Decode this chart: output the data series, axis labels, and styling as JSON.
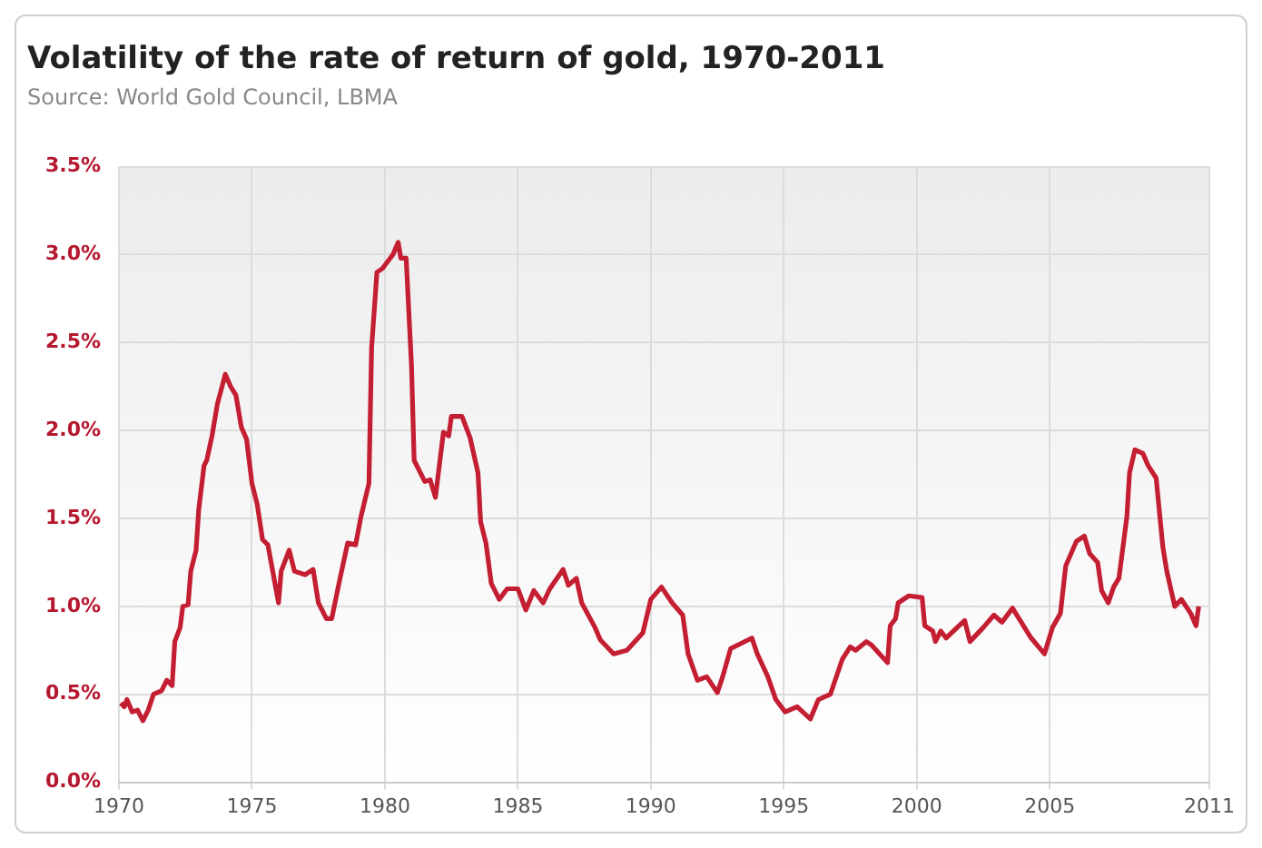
{
  "chart_data": {
    "type": "line",
    "title": "Volatility of the rate of return of gold, 1970-2011",
    "annotations": [
      "Source: World Gold Council, LBMA"
    ],
    "x": [
      1970.07,
      1970.2,
      1970.3,
      1970.5,
      1970.7,
      1970.9,
      1971.1,
      1971.3,
      1971.6,
      1971.8,
      1972.0,
      1972.1,
      1972.3,
      1972.4,
      1972.6,
      1972.7,
      1972.9,
      1973.0,
      1973.2,
      1973.3,
      1973.5,
      1973.7,
      1974.0,
      1974.2,
      1974.4,
      1974.6,
      1974.8,
      1975.0,
      1975.2,
      1975.4,
      1975.6,
      1976.0,
      1976.1,
      1976.4,
      1976.6,
      1977.0,
      1977.3,
      1977.5,
      1977.8,
      1978.0,
      1978.3,
      1978.6,
      1978.9,
      1979.1,
      1979.4,
      1979.5,
      1979.7,
      1979.9,
      1980.3,
      1980.5,
      1980.6,
      1980.8,
      1981.0,
      1981.1,
      1981.5,
      1981.7,
      1981.9,
      1982.2,
      1982.4,
      1982.5,
      1982.9,
      1983.2,
      1983.5,
      1983.6,
      1983.8,
      1984.0,
      1984.3,
      1984.6,
      1985.0,
      1985.3,
      1985.6,
      1985.95,
      1986.2,
      1986.7,
      1986.9,
      1987.2,
      1987.4,
      1987.9,
      1988.1,
      1988.6,
      1989.1,
      1989.7,
      1990.0,
      1990.4,
      1990.8,
      1991.2,
      1991.4,
      1991.75,
      1992.1,
      1992.5,
      1992.7,
      1993.0,
      1993.8,
      1994.0,
      1994.4,
      1994.7,
      1995.05,
      1995.5,
      1996.0,
      1996.3,
      1996.75,
      1997.2,
      1997.5,
      1997.7,
      1998.1,
      1998.3,
      1998.6,
      1998.9,
      1999.0,
      1999.2,
      1999.3,
      1999.7,
      2000.2,
      2000.3,
      2000.6,
      2000.7,
      2000.9,
      2001.1,
      2001.8,
      2002.0,
      2002.5,
      2002.9,
      2003.2,
      2003.6,
      2004.3,
      2004.8,
      2005.1,
      2005.4,
      2005.6,
      2006.0,
      2006.3,
      2006.5,
      2006.8,
      2006.95,
      2007.2,
      2007.4,
      2007.6,
      2007.9,
      2008.0,
      2008.2,
      2008.5,
      2008.7,
      2009.0,
      2009.25,
      2009.4,
      2009.7,
      2009.95,
      2010.3,
      2010.5,
      2010.6
    ],
    "series": [
      {
        "color": "#c41e32",
        "values": [
          0.45,
          0.43,
          0.47,
          0.4,
          0.41,
          0.35,
          0.41,
          0.5,
          0.52,
          0.58,
          0.55,
          0.8,
          0.88,
          1.0,
          1.01,
          1.2,
          1.32,
          1.55,
          1.8,
          1.83,
          1.97,
          2.15,
          2.32,
          2.25,
          2.2,
          2.02,
          1.95,
          1.7,
          1.58,
          1.38,
          1.35,
          1.02,
          1.2,
          1.32,
          1.2,
          1.18,
          1.21,
          1.02,
          0.93,
          0.93,
          1.15,
          1.36,
          1.35,
          1.51,
          1.7,
          2.47,
          2.9,
          2.92,
          3.0,
          3.07,
          2.98,
          2.98,
          2.37,
          1.83,
          1.71,
          1.72,
          1.62,
          1.99,
          1.97,
          2.08,
          2.08,
          1.96,
          1.76,
          1.48,
          1.36,
          1.13,
          1.04,
          1.1,
          1.1,
          0.98,
          1.09,
          1.02,
          1.1,
          1.21,
          1.12,
          1.16,
          1.02,
          0.88,
          0.81,
          0.73,
          0.75,
          0.85,
          1.04,
          1.11,
          1.02,
          0.95,
          0.73,
          0.58,
          0.6,
          0.51,
          0.6,
          0.76,
          0.82,
          0.73,
          0.6,
          0.47,
          0.4,
          0.43,
          0.36,
          0.47,
          0.5,
          0.7,
          0.77,
          0.75,
          0.8,
          0.78,
          0.73,
          0.68,
          0.89,
          0.93,
          1.02,
          1.06,
          1.05,
          0.89,
          0.86,
          0.8,
          0.86,
          0.82,
          0.92,
          0.8,
          0.88,
          0.95,
          0.91,
          0.99,
          0.82,
          0.73,
          0.88,
          0.96,
          1.23,
          1.37,
          1.4,
          1.3,
          1.25,
          1.09,
          1.02,
          1.11,
          1.16,
          1.51,
          1.76,
          1.89,
          1.87,
          1.8,
          1.73,
          1.34,
          1.2,
          1.0,
          1.04,
          0.96,
          0.89,
          1.0
        ]
      }
    ],
    "xlim": [
      1970,
      2011
    ],
    "xticks": [
      1970,
      1975,
      1980,
      1985,
      1990,
      1995,
      2000,
      2005,
      2011
    ],
    "ylim": [
      0,
      3.5
    ],
    "yticks": [
      {
        "value": 0,
        "label": "0.0%"
      },
      {
        "value": 0.5,
        "label": "0.5%"
      },
      {
        "value": 1,
        "label": "1.0%"
      },
      {
        "value": 1.5,
        "label": "1.5%"
      },
      {
        "value": 2,
        "label": "2.0%"
      },
      {
        "value": 2.5,
        "label": "2.5%"
      },
      {
        "value": 3,
        "label": "3.0%"
      },
      {
        "value": 3.5,
        "label": "3.5%"
      }
    ],
    "grid": true,
    "legend": false,
    "marker": "none",
    "line_style": "solid"
  }
}
